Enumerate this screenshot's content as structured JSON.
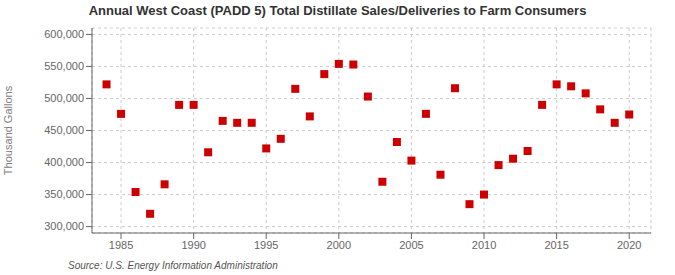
{
  "chart_data": {
    "type": "scatter",
    "title": "Annual West Coast (PADD 5) Total Distillate Sales/Deliveries to Farm Consumers",
    "ylabel": "Thousand Gallons",
    "annotations": [
      "Source: U.S. Energy Information Administration"
    ],
    "x": [
      1984,
      1985,
      1986,
      1987,
      1988,
      1989,
      1990,
      1991,
      1992,
      1993,
      1994,
      1995,
      1996,
      1997,
      1998,
      1999,
      2000,
      2001,
      2002,
      2003,
      2004,
      2005,
      2006,
      2007,
      2008,
      2009,
      2010,
      2011,
      2012,
      2013,
      2014,
      2015,
      2016,
      2017,
      2018,
      2019,
      2020
    ],
    "values": [
      522000,
      476000,
      354000,
      320000,
      366000,
      490000,
      490000,
      416000,
      465000,
      462000,
      462000,
      422000,
      437000,
      515000,
      472000,
      538000,
      554000,
      553000,
      503000,
      370000,
      432000,
      403000,
      476000,
      381000,
      516000,
      335000,
      350000,
      396000,
      406000,
      418000,
      490000,
      522000,
      519000,
      508000,
      483000,
      462000,
      475000
    ],
    "color": "#cc0000",
    "marker": "square",
    "xlim": [
      1983,
      2021.5
    ],
    "xticks": [
      1985,
      1990,
      1995,
      2000,
      2005,
      2010,
      2015,
      2020
    ],
    "ylim": [
      290000,
      610000
    ],
    "yticks": [
      {
        "value": 300000,
        "label": "300,000"
      },
      {
        "value": 350000,
        "label": "350,000"
      },
      {
        "value": 400000,
        "label": "400,000"
      },
      {
        "value": 450000,
        "label": "450,000"
      },
      {
        "value": 500000,
        "label": "500,000"
      },
      {
        "value": 550000,
        "label": "550,000"
      },
      {
        "value": 600000,
        "label": "600,000"
      }
    ],
    "grid": true
  }
}
